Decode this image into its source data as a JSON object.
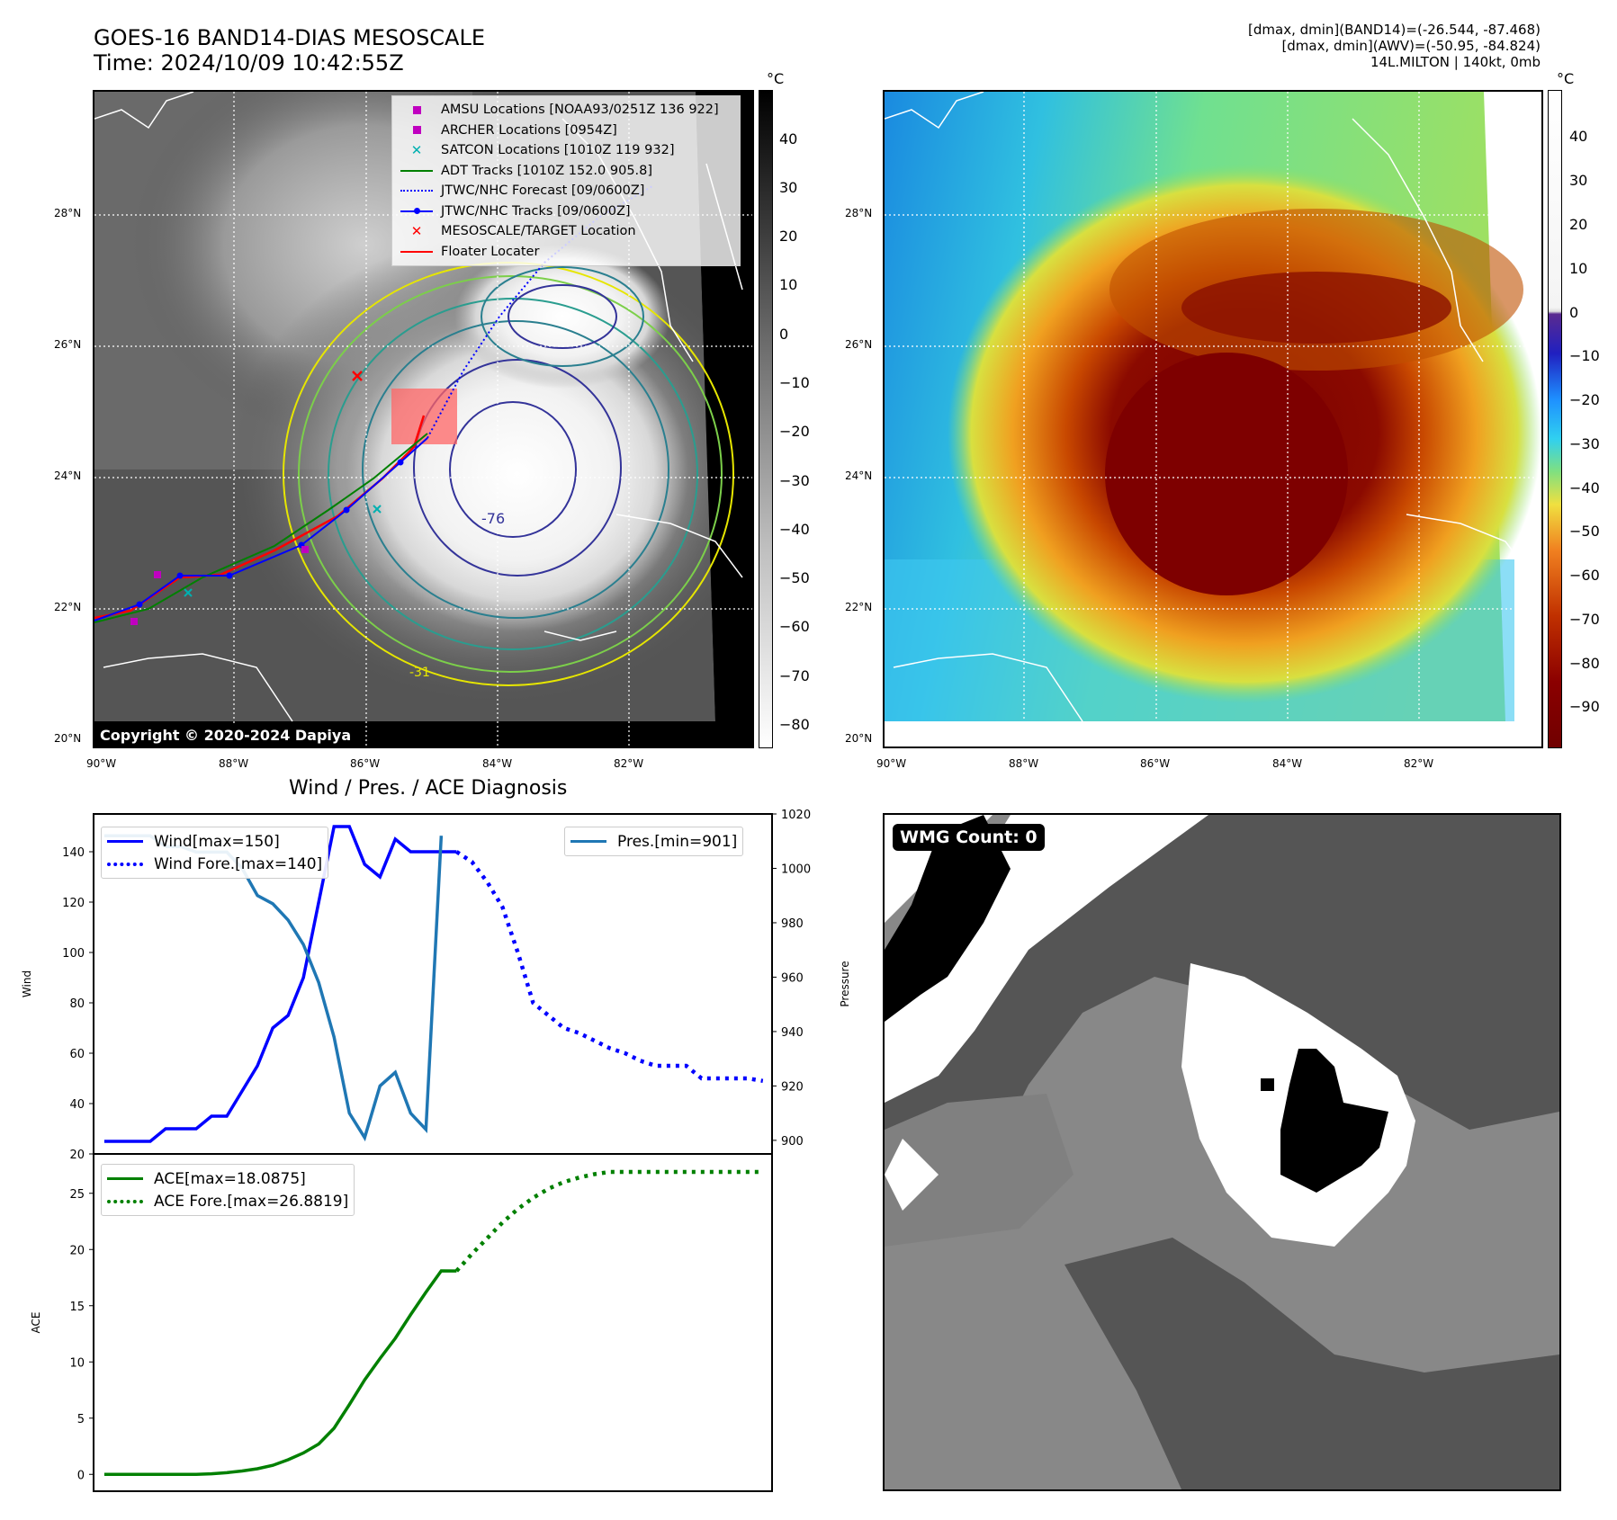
{
  "header": {
    "title_line1": "GOES-16 BAND14-DIAS MESOSCALE",
    "title_line2": "Time: 2024/10/09 10:42:55Z",
    "info_line1": "[dmax, dmin](BAND14)=(-26.544, -87.468)",
    "info_line2": "[dmax, dmin](AWV)=(-50.95, -84.824)",
    "info_line3": "14L.MILTON | 140kt, 0mb"
  },
  "map_axes": {
    "lon_labels": [
      "90°W",
      "88°W",
      "86°W",
      "84°W",
      "82°W"
    ],
    "lat_labels": [
      "28°N",
      "26°N",
      "24°N",
      "22°N",
      "20°N"
    ]
  },
  "ir_panel": {
    "copyright": "Copyright © 2020-2024 Dapiya",
    "colorbar_unit": "°C",
    "colorbar_ticks": [
      "40",
      "30",
      "20",
      "10",
      "0",
      "−10",
      "−20",
      "−30",
      "−40",
      "−50",
      "−60",
      "−70",
      "−80"
    ],
    "contour_label_1": "-76",
    "contour_label_2": "-31",
    "legend": [
      {
        "label": "AMSU Locations [NOAA93/0251Z 136 922]",
        "symbol": "square",
        "color": "#c000c0"
      },
      {
        "label": "ARCHER Locations [0954Z]",
        "symbol": "square",
        "color": "#c000c0"
      },
      {
        "label": "SATCON Locations [1010Z 119 932]",
        "symbol": "x",
        "color": "#00b0b0"
      },
      {
        "label": "ADT Tracks [1010Z 152.0 905.8]",
        "symbol": "line",
        "color": "#008000"
      },
      {
        "label": "JTWC/NHC Forecast [09/0600Z]",
        "symbol": "dotted",
        "color": "#0000ff"
      },
      {
        "label": "JTWC/NHC Tracks [09/0600Z]",
        "symbol": "line-dot",
        "color": "#0000ff"
      },
      {
        "label": "MESOSCALE/TARGET Location",
        "symbol": "x",
        "color": "#ff0000"
      },
      {
        "label": "Floater Locater",
        "symbol": "line",
        "color": "#ff0000"
      }
    ]
  },
  "awv_panel": {
    "colorbar_unit": "°C",
    "colorbar_ticks": [
      "40",
      "30",
      "20",
      "10",
      "0",
      "−10",
      "−20",
      "−30",
      "−40",
      "−50",
      "−60",
      "−70",
      "−80",
      "−90"
    ]
  },
  "wmg_panel": {
    "label": "WMG Count: 0"
  },
  "chart_data": [
    {
      "type": "line",
      "title": "Wind / Pres. / ACE Diagnosis",
      "ylabel": "Wind",
      "ylabel_right": "Pressure",
      "ylim": [
        20,
        155
      ],
      "ylim_right": [
        895,
        1020
      ],
      "yticks": [
        20,
        40,
        60,
        80,
        100,
        120,
        140
      ],
      "yticks_right": [
        900,
        920,
        940,
        960,
        980,
        1000,
        1020
      ],
      "series": [
        {
          "name": "Wind[max=150]",
          "color": "#0000ff",
          "style": "solid",
          "x": [
            0,
            1,
            2,
            3,
            4,
            5,
            6,
            7,
            8,
            9,
            10,
            11,
            12,
            13,
            14,
            15,
            16,
            17,
            18,
            19,
            20,
            21,
            22,
            23
          ],
          "values": [
            25,
            25,
            25,
            25,
            30,
            30,
            30,
            35,
            35,
            45,
            55,
            70,
            75,
            90,
            120,
            150,
            150,
            135,
            130,
            145,
            140,
            140,
            140,
            140
          ]
        },
        {
          "name": "Wind Fore.[max=140]",
          "color": "#0000ff",
          "style": "dotted",
          "x": [
            23,
            24,
            25,
            26,
            27,
            28,
            29,
            30,
            31,
            32,
            33,
            34,
            35,
            36,
            37,
            38,
            39,
            40,
            41,
            42,
            43
          ],
          "values": [
            140,
            136,
            128,
            118,
            100,
            80,
            75,
            70,
            68,
            65,
            62,
            60,
            57,
            55,
            55,
            55,
            50,
            50,
            50,
            50,
            49
          ]
        },
        {
          "name": "Pres.[min=901]",
          "color": "#1f77b4",
          "style": "solid",
          "axis": "right",
          "x": [
            0,
            1,
            2,
            3,
            4,
            5,
            6,
            7,
            8,
            9,
            10,
            11,
            12,
            13,
            14,
            15,
            16,
            17,
            18,
            19,
            20,
            21,
            22
          ],
          "values": [
            1012,
            1012,
            1012,
            1012,
            1008,
            1008,
            1006,
            1006,
            1006,
            1000,
            990,
            987,
            981,
            972,
            958,
            938,
            910,
            901,
            920,
            925,
            910,
            904,
            1012
          ]
        }
      ]
    },
    {
      "type": "line",
      "ylabel": "ACE",
      "ylim": [
        -1.5,
        28.5
      ],
      "yticks": [
        0,
        5,
        10,
        15,
        20,
        25
      ],
      "series": [
        {
          "name": "ACE[max=18.0875]",
          "color": "#008000",
          "style": "solid",
          "x": [
            0,
            1,
            2,
            3,
            4,
            5,
            6,
            7,
            8,
            9,
            10,
            11,
            12,
            13,
            14,
            15,
            16,
            17,
            18,
            19,
            20,
            21,
            22,
            23
          ],
          "values": [
            0,
            0,
            0,
            0,
            0,
            0,
            0,
            0.05,
            0.15,
            0.3,
            0.5,
            0.8,
            1.3,
            1.9,
            2.7,
            4.1,
            6.2,
            8.4,
            10.3,
            12.1,
            14.2,
            16.2,
            18.1,
            18.09
          ]
        },
        {
          "name": "ACE Fore.[max=26.8819]",
          "color": "#008000",
          "style": "dotted",
          "x": [
            23,
            24,
            25,
            26,
            27,
            28,
            29,
            30,
            31,
            32,
            33,
            34,
            35,
            36,
            37,
            38,
            39,
            40,
            41,
            42,
            43
          ],
          "values": [
            18.09,
            19.6,
            21.0,
            22.4,
            23.6,
            24.6,
            25.4,
            26.0,
            26.4,
            26.7,
            26.9,
            26.9,
            26.9,
            26.9,
            26.9,
            26.9,
            26.9,
            26.9,
            26.9,
            26.9,
            26.9
          ]
        }
      ]
    }
  ]
}
